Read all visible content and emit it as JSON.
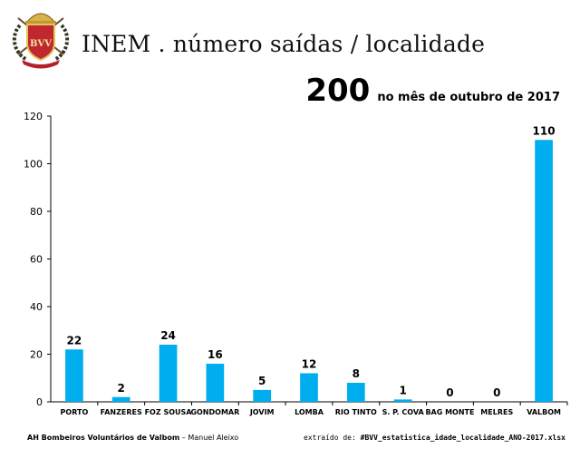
{
  "header": {
    "title": "INEM . número saídas / localidade",
    "total_value": "200",
    "total_label": "no mês de outubro de 2017"
  },
  "footer": {
    "org": "AH Bombeiros Voluntários de Valbom",
    "separator": " – ",
    "author": "Manuel Aleixo",
    "source_prefix": "extraído de: ",
    "source_file": "#BVV_estatistica_idade_localidade_ANO-2017.xlsx"
  },
  "logo": {
    "letters": "BVV"
  },
  "colors": {
    "bar": "#00AEEF",
    "axis": "#000000",
    "text": "#000000"
  },
  "chart_data": {
    "type": "bar",
    "title": "INEM . número saídas / localidade",
    "categories": [
      "PORTO",
      "FANZERES",
      "FOZ SOUSA",
      "GONDOMAR",
      "JOVIM",
      "LOMBA",
      "RIO TINTO",
      "S. P. COVA",
      "BAG MONTE",
      "MELRES",
      "VALBOM"
    ],
    "values": [
      22,
      2,
      24,
      16,
      5,
      12,
      8,
      1,
      0,
      0,
      110
    ],
    "ylim": [
      0,
      120
    ],
    "yticks": [
      0,
      20,
      40,
      60,
      80,
      100,
      120
    ],
    "grid": false,
    "data_labels": true,
    "legend": "none"
  }
}
